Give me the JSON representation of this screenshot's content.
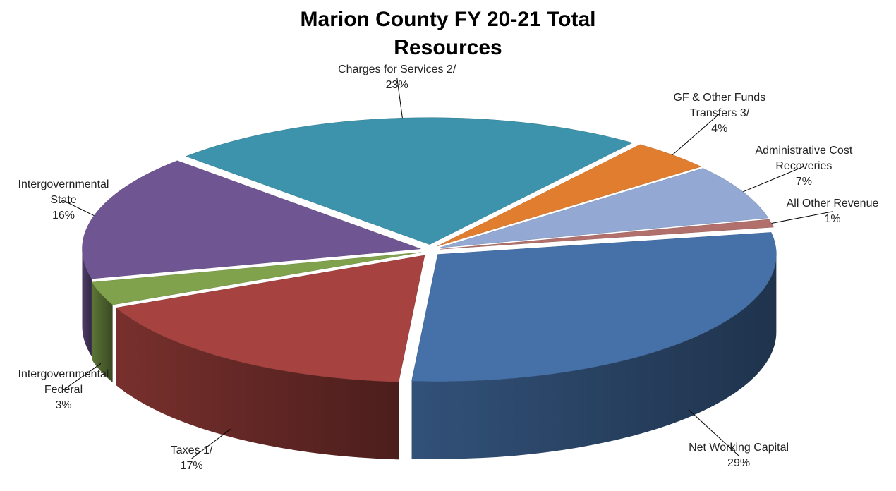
{
  "chart_data": {
    "type": "pie",
    "title": "Marion County FY 20-21 Total Resources",
    "categories": [
      "Charges for Services 2/",
      "GF & Other Funds Transfers 3/",
      "Administrative Cost Recoveries",
      "All Other Revenue",
      "Net Working Capital",
      "Taxes 1/",
      "Intergovernmental Federal",
      "Intergovernmental State"
    ],
    "values": [
      23,
      4,
      7,
      1,
      29,
      17,
      3,
      16
    ],
    "value_labels": [
      "23%",
      "4%",
      "7%",
      "1%",
      "29%",
      "17%",
      "3%",
      "16%"
    ],
    "colors": [
      "#3d93ab",
      "#e07d2e",
      "#93a9d3",
      "#b1706c",
      "#4571a8",
      "#a6423f",
      "#80a24c",
      "#6f5693"
    ]
  }
}
